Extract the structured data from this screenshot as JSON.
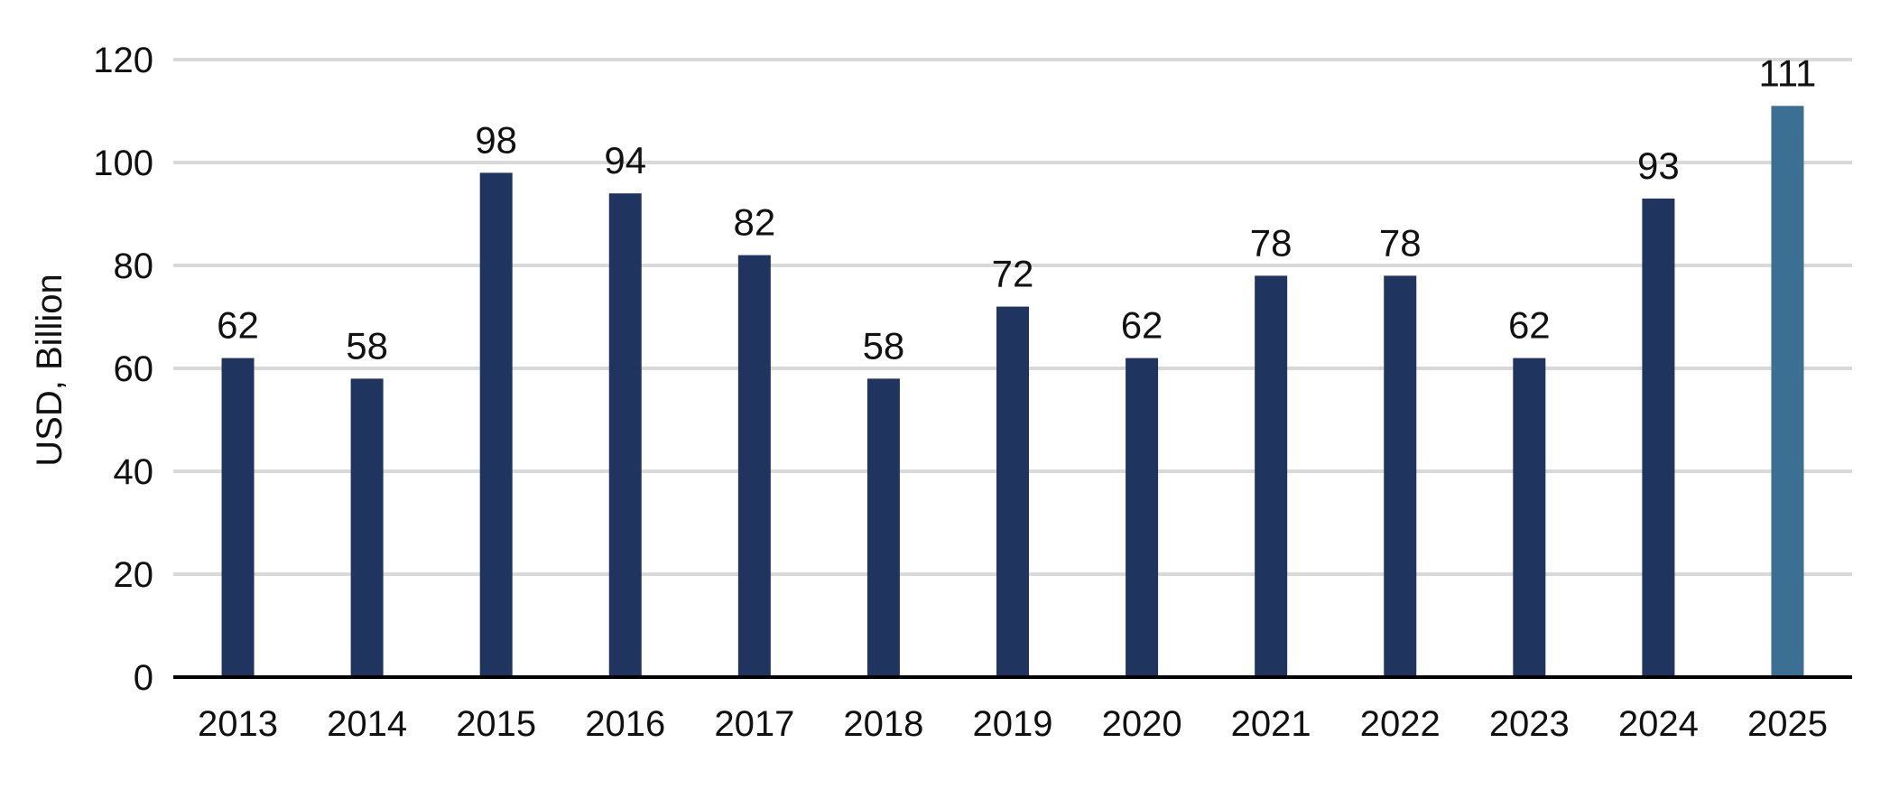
{
  "chart_data": {
    "type": "bar",
    "title": "",
    "xlabel": "",
    "ylabel": "USD, Billion",
    "ylim": [
      0,
      120
    ],
    "yticks": [
      0,
      20,
      40,
      60,
      80,
      100,
      120
    ],
    "grid": true,
    "legend": "none",
    "categories": [
      "2013",
      "2014",
      "2015",
      "2016",
      "2017",
      "2018",
      "2019",
      "2020",
      "2021",
      "2022",
      "2023",
      "2024",
      "2025"
    ],
    "values": [
      62,
      58,
      98,
      94,
      82,
      58,
      72,
      62,
      78,
      78,
      62,
      93,
      111
    ],
    "data_labels": [
      "62",
      "58",
      "98",
      "94",
      "82",
      "58",
      "72",
      "62",
      "78",
      "78",
      "62",
      "93",
      "111"
    ],
    "bar_colors": [
      "#1f3560",
      "#1f3560",
      "#1f3560",
      "#1f3560",
      "#1f3560",
      "#1f3560",
      "#1f3560",
      "#1f3560",
      "#1f3560",
      "#1f3560",
      "#1f3560",
      "#1f3560",
      "#3b6f93"
    ],
    "gridline_color": "#d9d9d9",
    "axis_color": "#000000"
  }
}
